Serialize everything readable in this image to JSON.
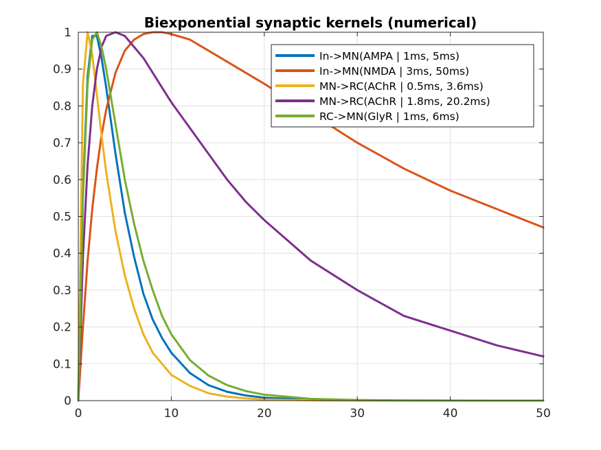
{
  "chart_data": {
    "type": "line",
    "title": "Biexponential synaptic kernels (numerical)",
    "xlabel": "",
    "ylabel": "",
    "xlim": [
      0,
      50
    ],
    "ylim": [
      0,
      1
    ],
    "xticks": [
      0,
      10,
      20,
      30,
      40,
      50
    ],
    "yticks": [
      0,
      0.1,
      0.2,
      0.3,
      0.4,
      0.5,
      0.6,
      0.7,
      0.8,
      0.9,
      1
    ],
    "grid": true,
    "legend_position": "top-right",
    "x": [
      0,
      0.5,
      1,
      1.5,
      2,
      2.5,
      3,
      4,
      5,
      6,
      7,
      8,
      9,
      10,
      12,
      14,
      16,
      18,
      20,
      25,
      30,
      35,
      40,
      45,
      50
    ],
    "series": [
      {
        "name": "In->MN(AMPA | 1ms, 5ms)",
        "color": "#0072BD",
        "values": [
          0,
          0.57,
          0.88,
          0.99,
          0.99,
          0.93,
          0.85,
          0.67,
          0.51,
          0.39,
          0.29,
          0.22,
          0.17,
          0.13,
          0.075,
          0.042,
          0.024,
          0.014,
          0.008,
          0.0025,
          0.0008,
          0.0003,
          0.0001,
          0,
          0
        ]
      },
      {
        "name": "In->MN(NMDA | 3ms, 50ms)",
        "color": "#D95319",
        "values": [
          0,
          0.2,
          0.38,
          0.52,
          0.63,
          0.72,
          0.79,
          0.89,
          0.95,
          0.98,
          0.995,
          1,
          1,
          0.995,
          0.98,
          0.95,
          0.92,
          0.89,
          0.86,
          0.78,
          0.7,
          0.63,
          0.57,
          0.52,
          0.47
        ]
      },
      {
        "name": "MN->RC(AChR | 0.5ms, 3.6ms)",
        "color": "#EDB120",
        "values": [
          0,
          0.86,
          1,
          0.94,
          0.83,
          0.72,
          0.62,
          0.46,
          0.34,
          0.25,
          0.18,
          0.13,
          0.1,
          0.07,
          0.04,
          0.02,
          0.011,
          0.006,
          0.003,
          0.0008,
          0.0002,
          0,
          0,
          0,
          0
        ]
      },
      {
        "name": "MN->RC(AChR | 1.8ms, 20.2ms)",
        "color": "#7E2F8E",
        "values": [
          0,
          0.39,
          0.64,
          0.8,
          0.9,
          0.96,
          0.99,
          1,
          0.99,
          0.96,
          0.93,
          0.89,
          0.85,
          0.81,
          0.74,
          0.67,
          0.6,
          0.54,
          0.49,
          0.38,
          0.3,
          0.23,
          0.19,
          0.15,
          0.12
        ]
      },
      {
        "name": "RC->MN(GlyR | 1ms, 6ms)",
        "color": "#77AC30",
        "values": [
          0,
          0.55,
          0.86,
          0.98,
          1,
          0.96,
          0.9,
          0.75,
          0.6,
          0.48,
          0.38,
          0.3,
          0.23,
          0.18,
          0.11,
          0.068,
          0.042,
          0.026,
          0.016,
          0.005,
          0.0016,
          0.0005,
          0.0002,
          0,
          0
        ]
      }
    ]
  }
}
